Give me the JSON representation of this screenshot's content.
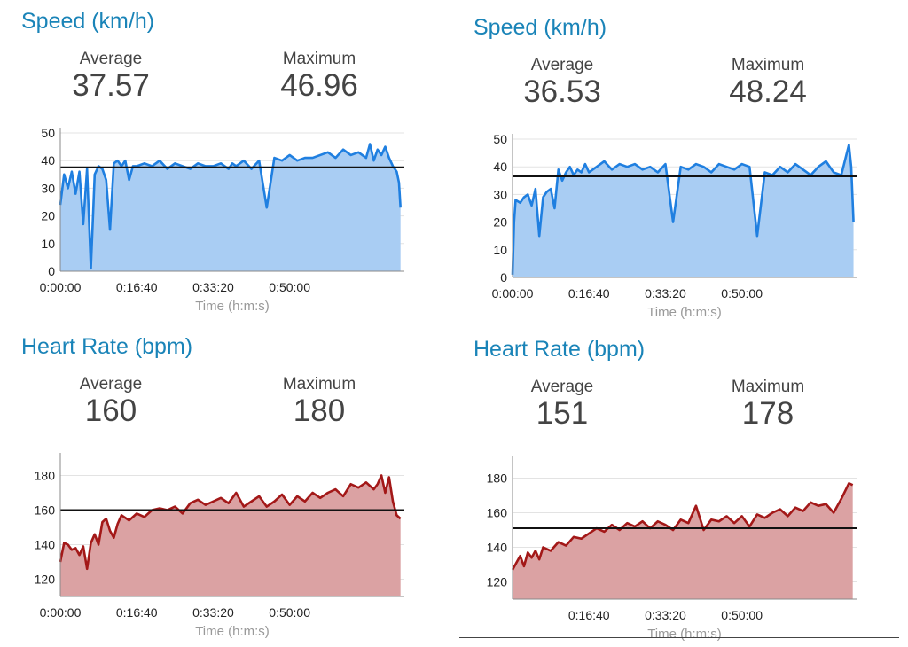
{
  "panels": [
    {
      "title": "Speed (km/h)",
      "average_label": "Average",
      "average_value": "37.57",
      "maximum_label": "Maximum",
      "maximum_value": "46.96"
    },
    {
      "title": "Speed (km/h)",
      "average_label": "Average",
      "average_value": "36.53",
      "maximum_label": "Maximum",
      "maximum_value": "48.24"
    },
    {
      "title": "Heart Rate (bpm)",
      "average_label": "Average",
      "average_value": "160",
      "maximum_label": "Maximum",
      "maximum_value": "180"
    },
    {
      "title": "Heart Rate (bpm)",
      "average_label": "Average",
      "average_value": "151",
      "maximum_label": "Maximum",
      "maximum_value": "178"
    }
  ],
  "chart_data": [
    {
      "type": "area",
      "xlabel": "Time (h:m:s)",
      "ylabel": "",
      "xlim": [
        0,
        4500
      ],
      "ylim": [
        0,
        50
      ],
      "yticks": [
        0,
        10,
        20,
        30,
        40,
        50
      ],
      "xtick_values": [
        0,
        1000,
        2000,
        3000
      ],
      "xtick_labels": [
        "0:00:00",
        "0:16:40",
        "0:33:20",
        "0:50:00"
      ],
      "average_line": 37.57,
      "grid": true,
      "colors": {
        "line": "#1f7fe0",
        "fill": "#a9cdf3",
        "avg": "#111111"
      },
      "x": [
        0,
        50,
        100,
        150,
        200,
        250,
        300,
        350,
        400,
        450,
        500,
        550,
        600,
        650,
        700,
        750,
        800,
        850,
        900,
        950,
        1000,
        1100,
        1200,
        1300,
        1400,
        1500,
        1600,
        1700,
        1800,
        1900,
        2000,
        2100,
        2200,
        2250,
        2300,
        2400,
        2500,
        2600,
        2700,
        2800,
        2900,
        3000,
        3100,
        3200,
        3300,
        3400,
        3500,
        3600,
        3700,
        3800,
        3900,
        4000,
        4050,
        4100,
        4150,
        4200,
        4250,
        4300,
        4350,
        4400,
        4430,
        4450
      ],
      "values": [
        24,
        35,
        30,
        36,
        28,
        36,
        17,
        37,
        1,
        35,
        38,
        37,
        33,
        15,
        39,
        40,
        38,
        40,
        33,
        38,
        38,
        39,
        38,
        40,
        37,
        39,
        38,
        37,
        39,
        38,
        38,
        39,
        37,
        39,
        38,
        40,
        37,
        40,
        23,
        41,
        40,
        42,
        40,
        41,
        41,
        42,
        43,
        41,
        44,
        42,
        43,
        41,
        46,
        40,
        44,
        42,
        45,
        41,
        38,
        36,
        32,
        23
      ]
    },
    {
      "type": "area",
      "xlabel": "Time (h:m:s)",
      "ylabel": "",
      "xlim": [
        0,
        4500
      ],
      "ylim": [
        0,
        50
      ],
      "yticks": [
        0,
        10,
        20,
        30,
        40,
        50
      ],
      "xtick_values": [
        0,
        1000,
        2000,
        3000
      ],
      "xtick_labels": [
        "0:00:00",
        "0:16:40",
        "0:33:20",
        "0:50:00"
      ],
      "average_line": 36.53,
      "grid": true,
      "colors": {
        "line": "#1f7fe0",
        "fill": "#a9cdf3",
        "avg": "#111111"
      },
      "x": [
        0,
        20,
        40,
        100,
        150,
        200,
        250,
        300,
        350,
        400,
        450,
        500,
        550,
        600,
        650,
        700,
        750,
        800,
        850,
        900,
        950,
        1000,
        1100,
        1200,
        1300,
        1400,
        1500,
        1600,
        1700,
        1800,
        1900,
        2000,
        2100,
        2200,
        2300,
        2400,
        2500,
        2600,
        2700,
        2800,
        2900,
        3000,
        3100,
        3200,
        3300,
        3400,
        3500,
        3600,
        3700,
        3800,
        3900,
        4000,
        4100,
        4200,
        4300,
        4400,
        4430,
        4460
      ],
      "values": [
        1,
        20,
        28,
        27,
        29,
        30,
        26,
        32,
        15,
        29,
        31,
        32,
        25,
        39,
        35,
        38,
        40,
        37,
        39,
        38,
        41,
        38,
        40,
        42,
        39,
        41,
        40,
        41,
        39,
        40,
        38,
        41,
        20,
        40,
        39,
        41,
        40,
        38,
        41,
        40,
        39,
        41,
        40,
        15,
        38,
        37,
        40,
        38,
        41,
        39,
        37,
        40,
        42,
        38,
        37,
        48,
        40,
        20
      ]
    },
    {
      "type": "area",
      "xlabel": "Time (h:m:s)",
      "ylabel": "",
      "xlim": [
        0,
        4500
      ],
      "ylim": [
        110,
        190
      ],
      "yticks": [
        120,
        140,
        160,
        180
      ],
      "xtick_values": [
        0,
        1000,
        2000,
        3000
      ],
      "xtick_labels": [
        "0:00:00",
        "0:16:40",
        "0:33:20",
        "0:50:00"
      ],
      "average_line": 160,
      "grid": true,
      "colors": {
        "line": "#a31818",
        "fill": "#dba2a3",
        "avg": "#111111"
      },
      "x": [
        0,
        50,
        100,
        150,
        200,
        250,
        300,
        350,
        400,
        450,
        500,
        550,
        600,
        650,
        700,
        750,
        800,
        900,
        1000,
        1100,
        1200,
        1300,
        1400,
        1500,
        1600,
        1700,
        1800,
        1900,
        2000,
        2100,
        2200,
        2300,
        2400,
        2500,
        2600,
        2700,
        2800,
        2900,
        3000,
        3100,
        3200,
        3300,
        3400,
        3500,
        3600,
        3700,
        3800,
        3900,
        4000,
        4100,
        4150,
        4200,
        4250,
        4300,
        4350,
        4400,
        4450
      ],
      "values": [
        130,
        141,
        140,
        137,
        138,
        134,
        139,
        126,
        141,
        146,
        140,
        153,
        155,
        148,
        144,
        152,
        157,
        154,
        158,
        156,
        160,
        161,
        160,
        162,
        158,
        164,
        166,
        163,
        165,
        167,
        164,
        170,
        162,
        165,
        168,
        162,
        165,
        169,
        163,
        168,
        165,
        170,
        167,
        170,
        172,
        168,
        175,
        173,
        176,
        172,
        175,
        180,
        170,
        179,
        165,
        157,
        155
      ]
    },
    {
      "type": "area",
      "xlabel": "Time (h:m:s)",
      "ylabel": "",
      "xlim": [
        0,
        4500
      ],
      "ylim": [
        110,
        190
      ],
      "yticks": [
        120,
        140,
        160,
        180
      ],
      "xtick_values": [
        1000,
        2000,
        3000
      ],
      "xtick_labels": [
        "0:16:40",
        "0:33:20",
        "0:50:00"
      ],
      "average_line": 151,
      "grid": true,
      "colors": {
        "line": "#a31818",
        "fill": "#dba2a3",
        "avg": "#111111"
      },
      "x": [
        0,
        50,
        100,
        150,
        200,
        250,
        300,
        350,
        400,
        500,
        600,
        700,
        800,
        900,
        1000,
        1100,
        1200,
        1300,
        1400,
        1500,
        1600,
        1700,
        1800,
        1900,
        2000,
        2100,
        2200,
        2300,
        2400,
        2500,
        2600,
        2700,
        2800,
        2900,
        3000,
        3100,
        3200,
        3300,
        3400,
        3500,
        3600,
        3700,
        3800,
        3900,
        4000,
        4100,
        4200,
        4300,
        4400,
        4450
      ],
      "values": [
        127,
        131,
        135,
        129,
        137,
        134,
        138,
        133,
        140,
        138,
        143,
        141,
        146,
        145,
        148,
        151,
        149,
        153,
        150,
        154,
        152,
        155,
        151,
        155,
        153,
        150,
        156,
        154,
        164,
        150,
        156,
        155,
        158,
        154,
        158,
        152,
        159,
        157,
        160,
        162,
        158,
        163,
        161,
        166,
        164,
        165,
        160,
        168,
        177,
        176
      ]
    }
  ]
}
